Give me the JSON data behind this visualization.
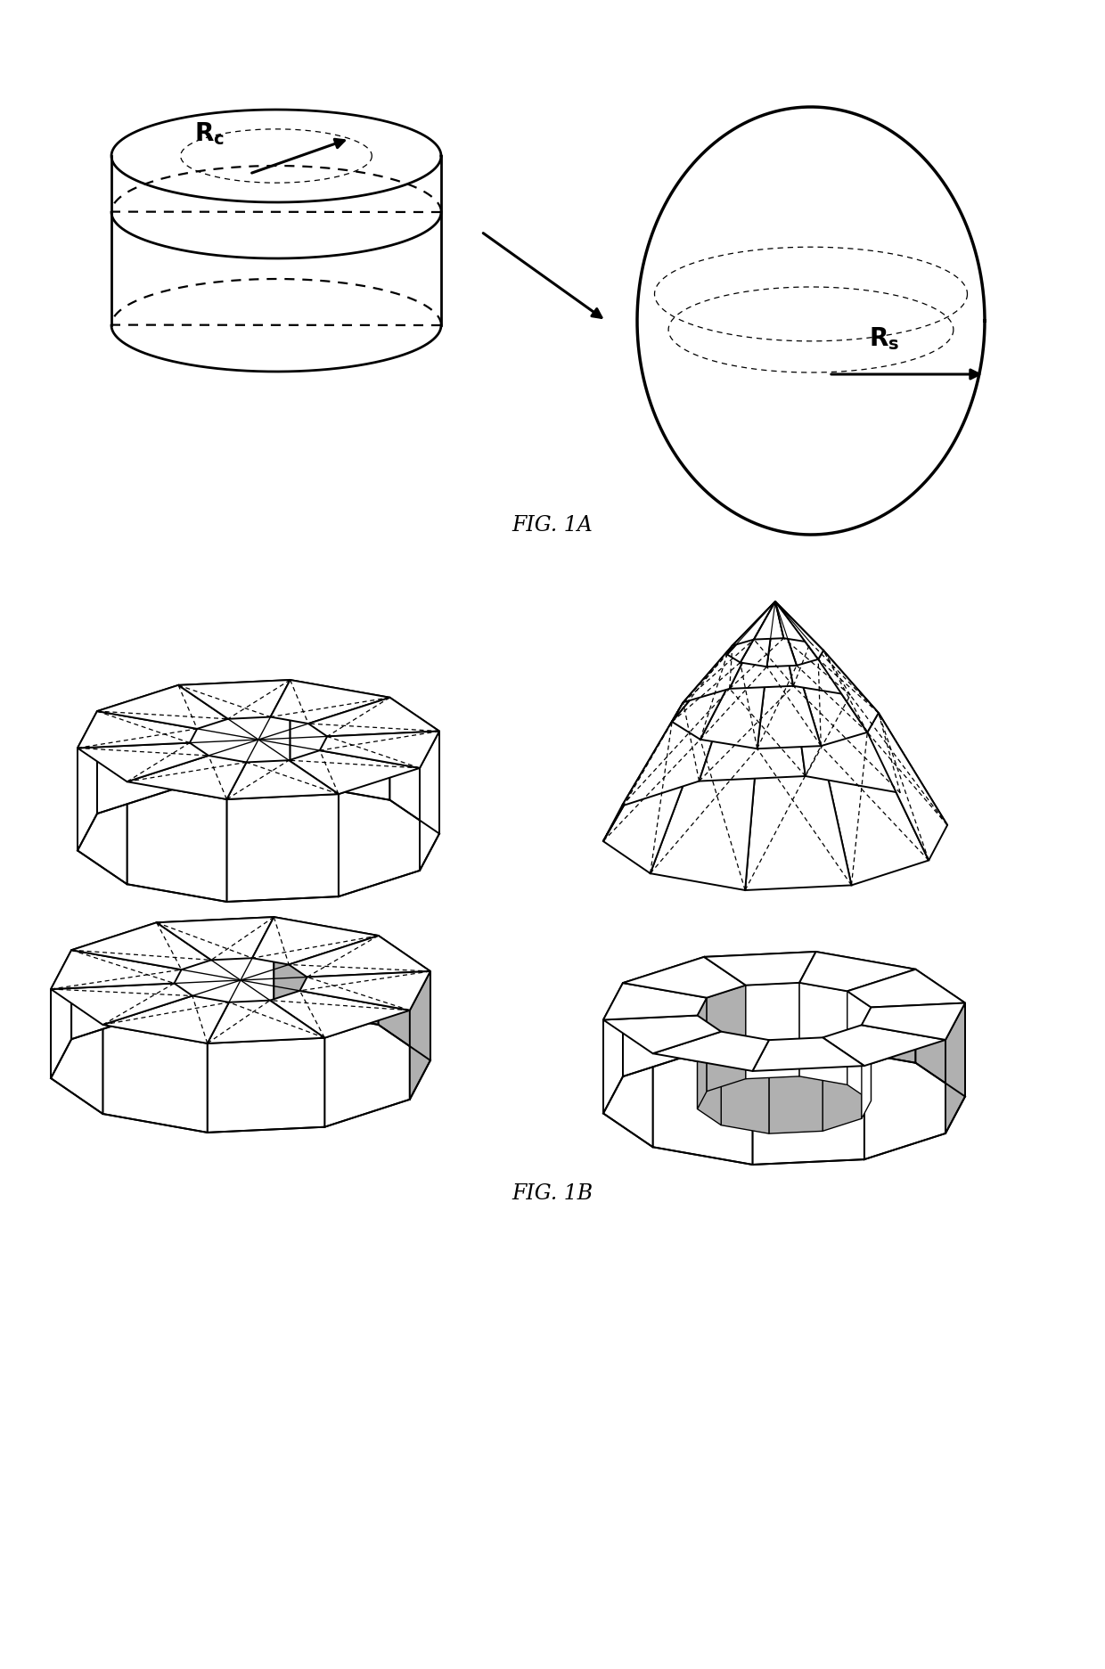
{
  "fig1a_label": "FIG. 1A",
  "fig1b_label": "FIG. 1B",
  "background_color": "#ffffff",
  "line_color": "#000000",
  "dashed_color": "#000000",
  "gray_color": "#b0b0b0",
  "dark_gray_color": "#888888",
  "n_sides": 10,
  "label_fontsize": 18,
  "caption_fontsize": 15,
  "lw_main": 2.0,
  "lw_frame": 1.4,
  "lw_dash": 0.9
}
